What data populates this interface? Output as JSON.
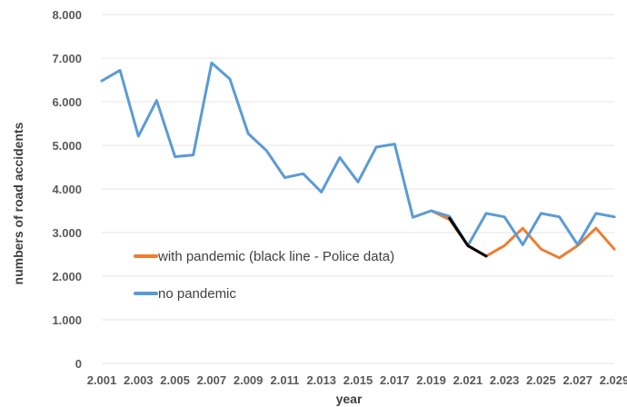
{
  "chart_data": {
    "type": "line",
    "xlabel": "year",
    "ylabel": "numbers of road accidents",
    "ylim": [
      0,
      8000
    ],
    "y_ticks": [
      "0",
      "1.000",
      "2.000",
      "3.000",
      "4.000",
      "5.000",
      "6.000",
      "7.000",
      "8.000"
    ],
    "x_ticks": [
      "2.001",
      "2.003",
      "2.005",
      "2.007",
      "2.009",
      "2.011",
      "2.013",
      "2.015",
      "2.017",
      "2.019",
      "2.021",
      "2.023",
      "2.025",
      "2.027",
      "2.029"
    ],
    "grid": "horizontal",
    "legend_placement": "center-left",
    "series": [
      {
        "name": "no pandemic",
        "color": "#5B9BD5",
        "x": [
          2001,
          2002,
          2003,
          2004,
          2005,
          2006,
          2007,
          2008,
          2009,
          2010,
          2011,
          2012,
          2013,
          2014,
          2015,
          2016,
          2017,
          2018,
          2019,
          2020,
          2021,
          2022,
          2023,
          2024,
          2025,
          2026,
          2027,
          2028,
          2029
        ],
        "values": [
          6480,
          6720,
          5210,
          6030,
          4740,
          4780,
          6890,
          6520,
          5270,
          4880,
          4260,
          4350,
          3930,
          4720,
          4160,
          4960,
          5030,
          3350,
          3500,
          3370,
          2700,
          3440,
          3360,
          2720,
          3440,
          3360,
          2720,
          3440,
          3360
        ]
      },
      {
        "name": "with pandemic (black line - Police data)",
        "color": "#ED7D31",
        "x": [
          2019,
          2020,
          2021,
          2022,
          2023,
          2024,
          2025,
          2026,
          2027,
          2028,
          2029
        ],
        "values": [
          3500,
          3300,
          2700,
          2460,
          2700,
          3100,
          2620,
          2420,
          2700,
          3100,
          2620
        ]
      },
      {
        "name": "Police data",
        "color": "#000000",
        "x": [
          2020,
          2021,
          2022
        ],
        "values": [
          3330,
          2700,
          2460
        ]
      }
    ]
  }
}
